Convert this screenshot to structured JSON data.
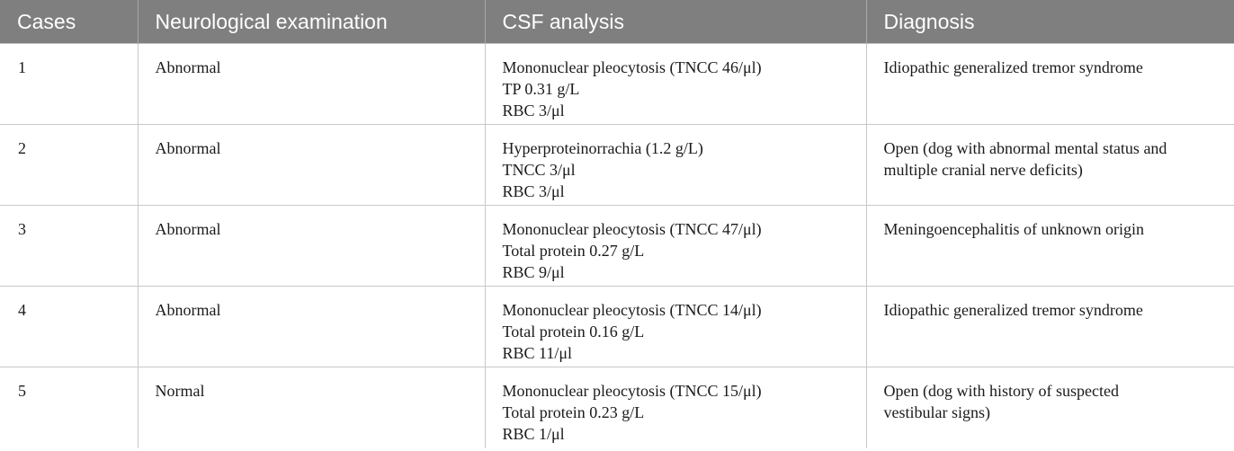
{
  "headers": [
    "Cases",
    "Neurological examination",
    "CSF analysis",
    "Diagnosis"
  ],
  "rows": [
    {
      "case": "1",
      "neuro": "Abnormal",
      "csf": [
        "Mononuclear pleocytosis (TNCC 46/μl)",
        "TP 0.31 g/L",
        "RBC 3/μl"
      ],
      "diagnosis": [
        "Idiopathic generalized tremor syndrome"
      ]
    },
    {
      "case": "2",
      "neuro": "Abnormal",
      "csf": [
        "Hyperproteinorrachia (1.2 g/L)",
        "TNCC 3/μl",
        "RBC 3/μl"
      ],
      "diagnosis": [
        "Open (dog with abnormal mental status and",
        "multiple cranial nerve deficits)"
      ]
    },
    {
      "case": "3",
      "neuro": "Abnormal",
      "csf": [
        "Mononuclear pleocytosis (TNCC 47/μl)",
        "Total protein 0.27 g/L",
        "RBC 9/μl"
      ],
      "diagnosis": [
        "Meningoencephalitis of unknown origin"
      ]
    },
    {
      "case": "4",
      "neuro": "Abnormal",
      "csf": [
        "Mononuclear pleocytosis (TNCC 14/μl)",
        "Total protein 0.16 g/L",
        "RBC 11/μl"
      ],
      "diagnosis": [
        "Idiopathic generalized tremor syndrome"
      ]
    },
    {
      "case": "5",
      "neuro": "Normal",
      "csf": [
        "Mononuclear pleocytosis (TNCC 15/μl)",
        "Total protein 0.23 g/L",
        "RBC 1/μl"
      ],
      "diagnosis": [
        "Open (dog with history of suspected",
        "vestibular signs)"
      ]
    }
  ]
}
